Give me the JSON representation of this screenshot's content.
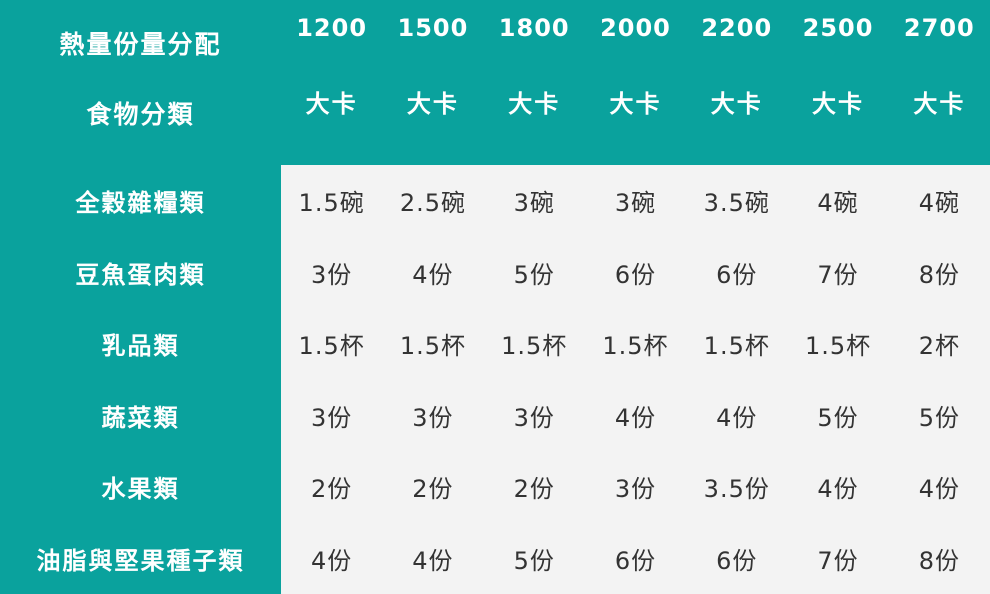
{
  "corner": {
    "line1": "熱量份量分配",
    "line2": "食物分類"
  },
  "columns": [
    {
      "calories": "1200",
      "unit": "大卡"
    },
    {
      "calories": "1500",
      "unit": "大卡"
    },
    {
      "calories": "1800",
      "unit": "大卡"
    },
    {
      "calories": "2000",
      "unit": "大卡"
    },
    {
      "calories": "2200",
      "unit": "大卡"
    },
    {
      "calories": "2500",
      "unit": "大卡"
    },
    {
      "calories": "2700",
      "unit": "大卡"
    }
  ],
  "rows": [
    {
      "label": "全穀雜糧類",
      "values": [
        "1.5碗",
        "2.5碗",
        "3碗",
        "3碗",
        "3.5碗",
        "4碗",
        "4碗"
      ]
    },
    {
      "label": "豆魚蛋肉類",
      "values": [
        "3份",
        "4份",
        "5份",
        "6份",
        "6份",
        "7份",
        "8份"
      ]
    },
    {
      "label": "乳品類",
      "values": [
        "1.5杯",
        "1.5杯",
        "1.5杯",
        "1.5杯",
        "1.5杯",
        "1.5杯",
        "2杯"
      ]
    },
    {
      "label": "蔬菜類",
      "values": [
        "3份",
        "3份",
        "3份",
        "4份",
        "4份",
        "5份",
        "5份"
      ]
    },
    {
      "label": "水果類",
      "values": [
        "2份",
        "2份",
        "2份",
        "3份",
        "3.5份",
        "4份",
        "4份"
      ]
    },
    {
      "label": "油脂與堅果種子類",
      "values": [
        "4份",
        "4份",
        "5份",
        "6份",
        "6份",
        "7份",
        "8份"
      ]
    }
  ],
  "colors": {
    "header_bg": "#0aa29d",
    "cell_bg": "#f3f3f3",
    "header_text": "#ffffff",
    "cell_text": "#333333"
  }
}
